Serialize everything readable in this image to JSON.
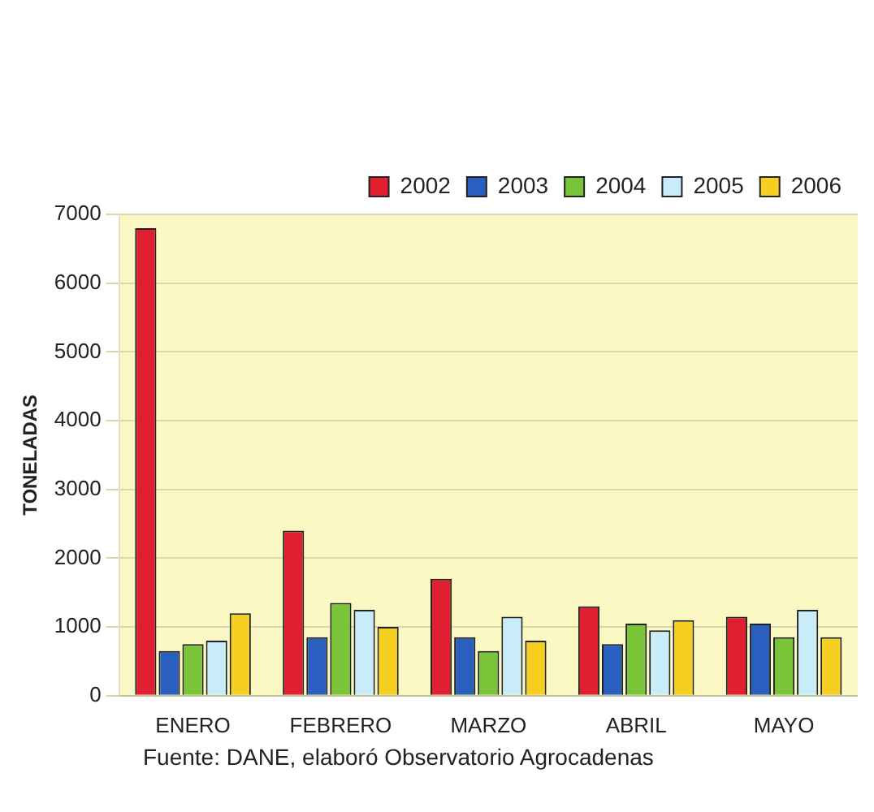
{
  "chart_data": {
    "type": "bar",
    "ylabel": "TONELADAS",
    "categories": [
      "ENERO",
      "FEBRERO",
      "MARZO",
      "ABRIL",
      "MAYO"
    ],
    "series": [
      {
        "name": "2002",
        "color": "#e02030",
        "values": [
          6800,
          2400,
          1700,
          1300,
          1150
        ]
      },
      {
        "name": "2003",
        "color": "#2a5fc0",
        "values": [
          650,
          850,
          850,
          750,
          1050
        ]
      },
      {
        "name": "2004",
        "color": "#7ac43a",
        "values": [
          750,
          1350,
          650,
          1050,
          850
        ]
      },
      {
        "name": "2005",
        "color": "#c8ecfa",
        "values": [
          800,
          1250,
          1150,
          950,
          1250
        ]
      },
      {
        "name": "2006",
        "color": "#f5d020",
        "values": [
          1200,
          1000,
          800,
          1100,
          850
        ]
      }
    ],
    "ylim": [
      0,
      7000
    ],
    "yticks": [
      0,
      1000,
      2000,
      3000,
      4000,
      5000,
      6000,
      7000
    ],
    "grid": "y",
    "legend": "top",
    "annotations": [
      "Fuente: DANE, elaboró Observatorio Agrocadenas"
    ]
  }
}
